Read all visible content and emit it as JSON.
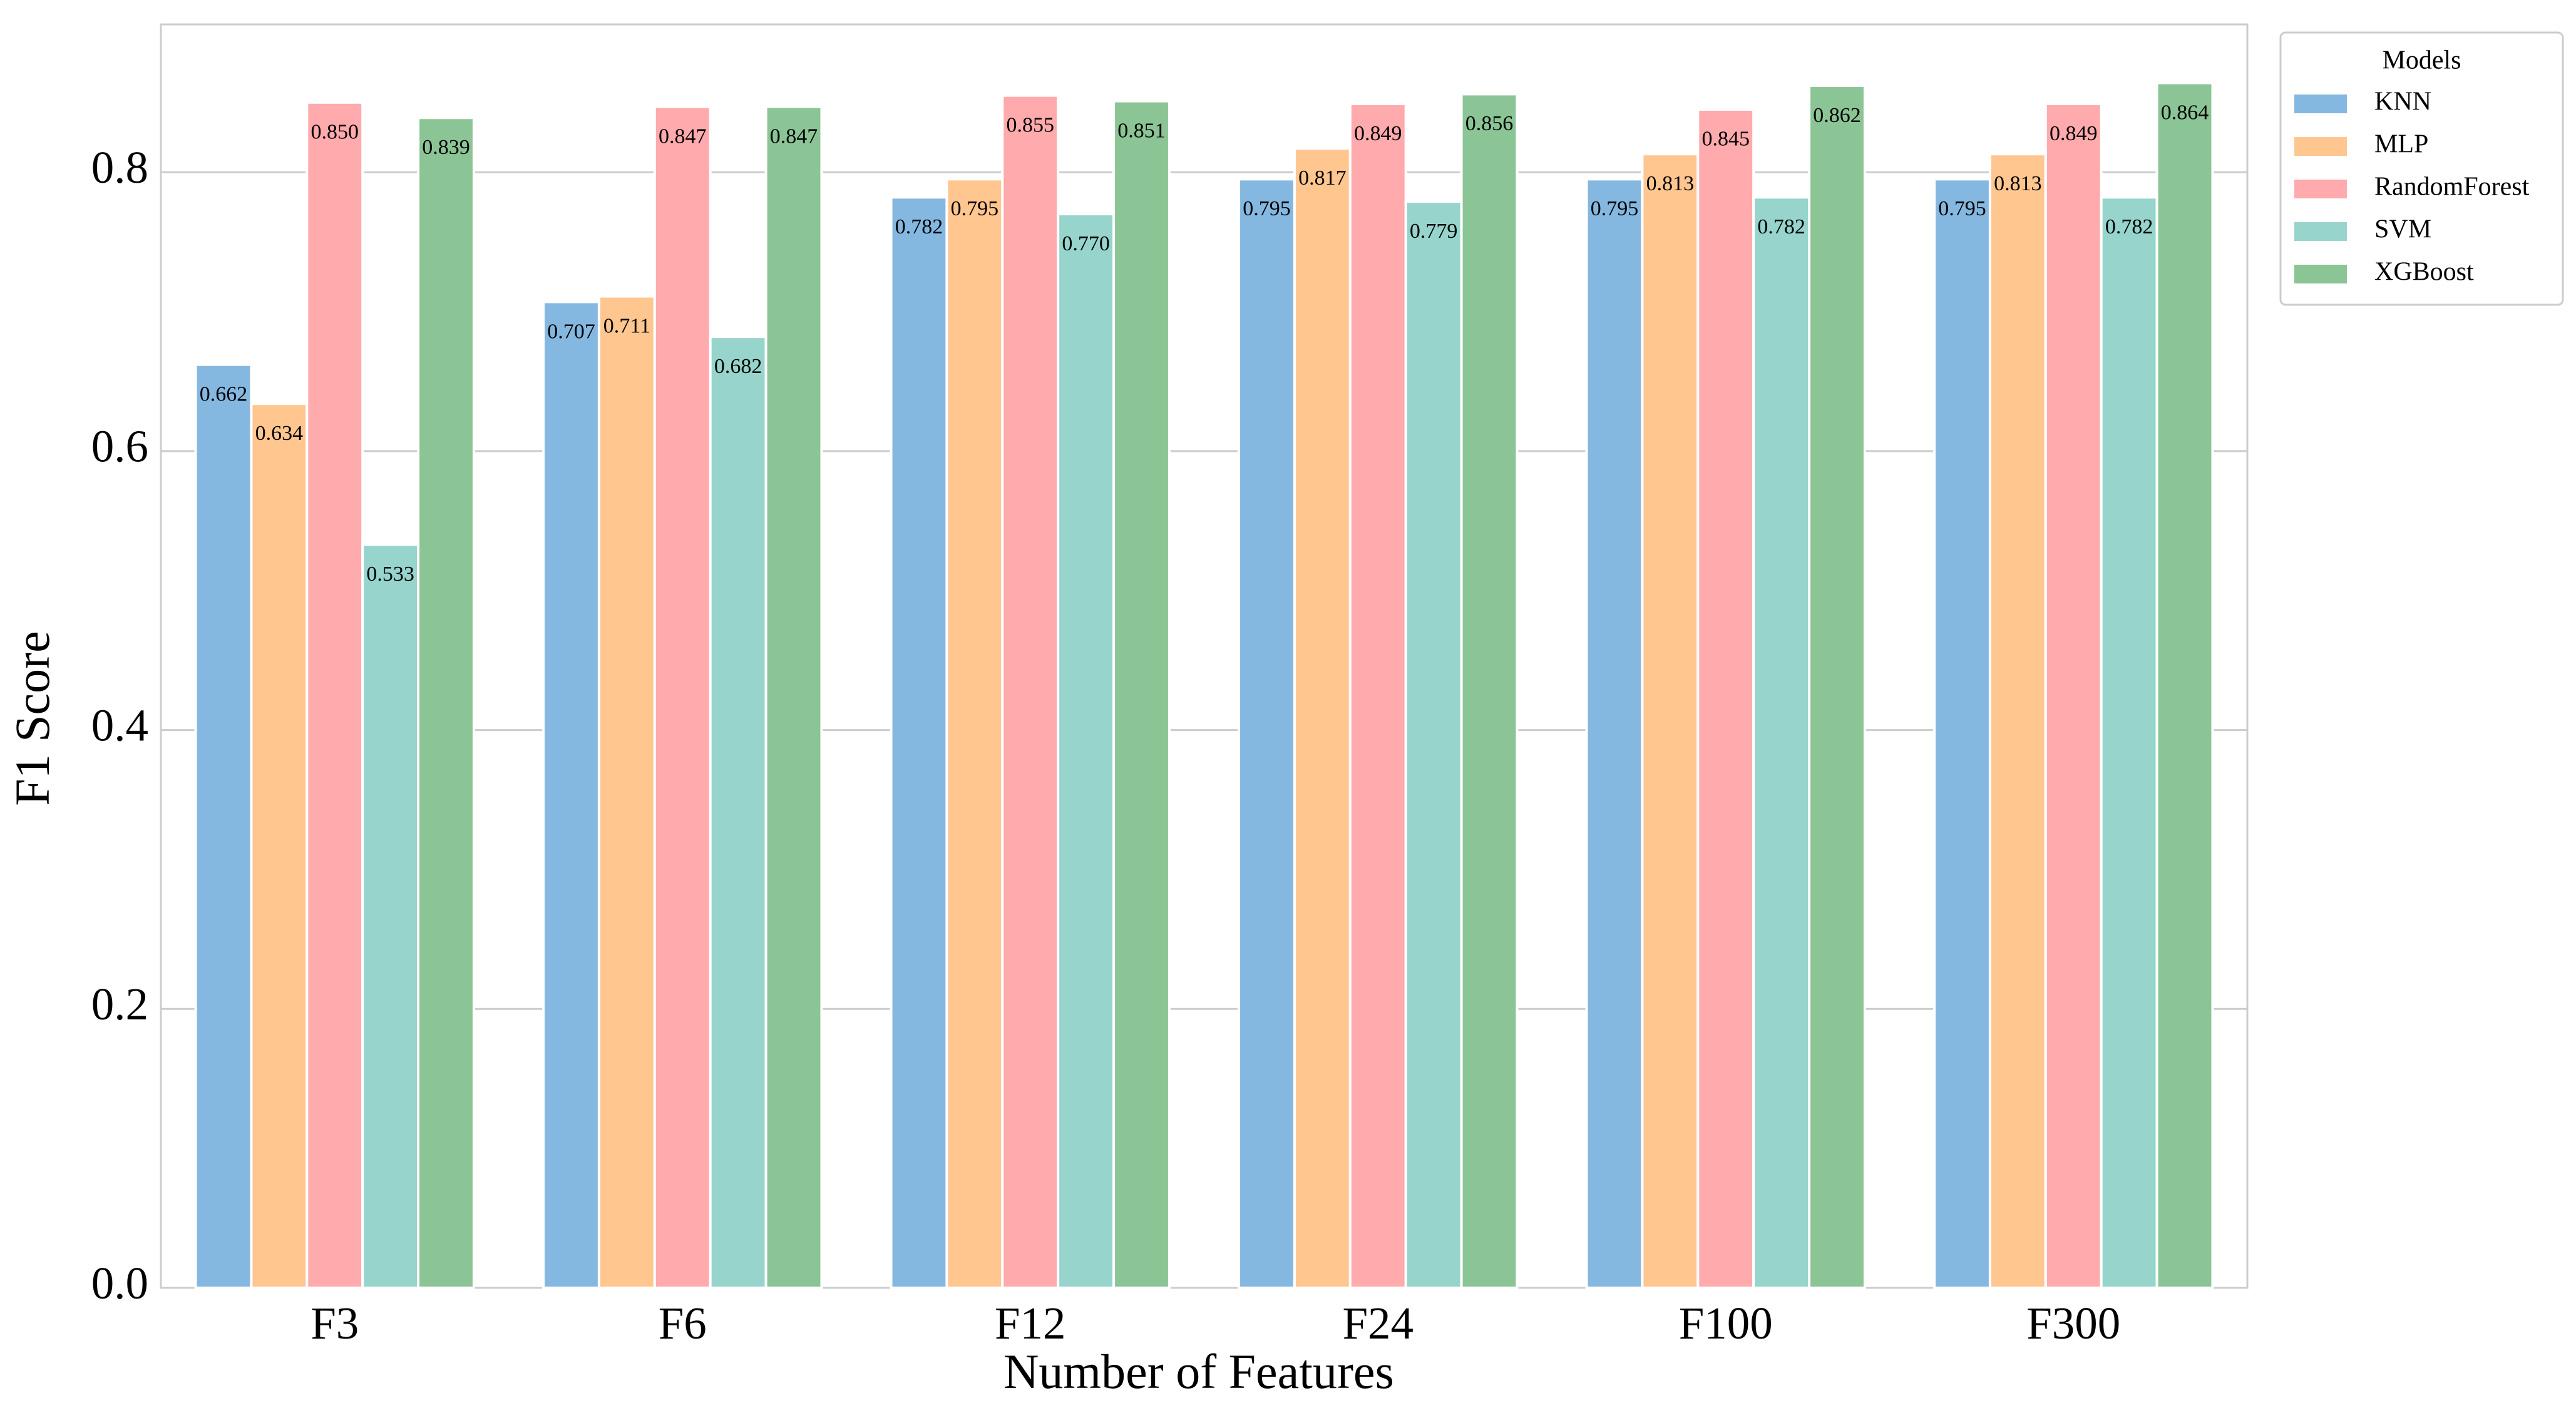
{
  "chart_data": {
    "type": "bar",
    "x_label": "Number of Features",
    "y_label": "F1 Score",
    "categories": [
      "F3",
      "F6",
      "F12",
      "F24",
      "F100",
      "F300"
    ],
    "series": [
      {
        "name": "KNN",
        "color": "#85b8e0",
        "values": [
          0.662,
          0.707,
          0.782,
          0.795,
          0.795,
          0.795
        ],
        "value_labels": [
          "0.662",
          "0.707",
          "0.782",
          "0.795",
          "0.795",
          "0.795"
        ]
      },
      {
        "name": "MLP",
        "color": "#ffc690",
        "values": [
          0.634,
          0.711,
          0.795,
          0.817,
          0.813,
          0.813
        ],
        "value_labels": [
          "0.634",
          "0.711",
          "0.795",
          "0.817",
          "0.813",
          "0.813"
        ]
      },
      {
        "name": "RandomForest",
        "color": "#ffaaad",
        "values": [
          0.85,
          0.847,
          0.855,
          0.849,
          0.845,
          0.849
        ],
        "value_labels": [
          "0.850",
          "0.847",
          "0.855",
          "0.849",
          "0.845",
          "0.849"
        ]
      },
      {
        "name": "SVM",
        "color": "#96d4cc",
        "values": [
          0.533,
          0.682,
          0.77,
          0.779,
          0.782,
          0.782
        ],
        "value_labels": [
          "0.533",
          "0.682",
          "0.770",
          "0.779",
          "0.782",
          "0.782"
        ]
      },
      {
        "name": "XGBoost",
        "color": "#8cc595",
        "values": [
          0.839,
          0.847,
          0.851,
          0.856,
          0.862,
          0.864
        ],
        "value_labels": [
          "0.839",
          "0.847",
          "0.851",
          "0.856",
          "0.862",
          "0.864"
        ]
      }
    ],
    "ylim": [
      0,
      0.906
    ],
    "yticks": [
      {
        "value": 0,
        "label": "0.0"
      },
      {
        "value": 0.2,
        "label": "0.2"
      },
      {
        "value": 0.4,
        "label": "0.4"
      },
      {
        "value": 0.6,
        "label": "0.6"
      },
      {
        "value": 0.8,
        "label": "0.8"
      }
    ],
    "grid": true,
    "legend_title": "Models",
    "legend_position": "outside right"
  }
}
